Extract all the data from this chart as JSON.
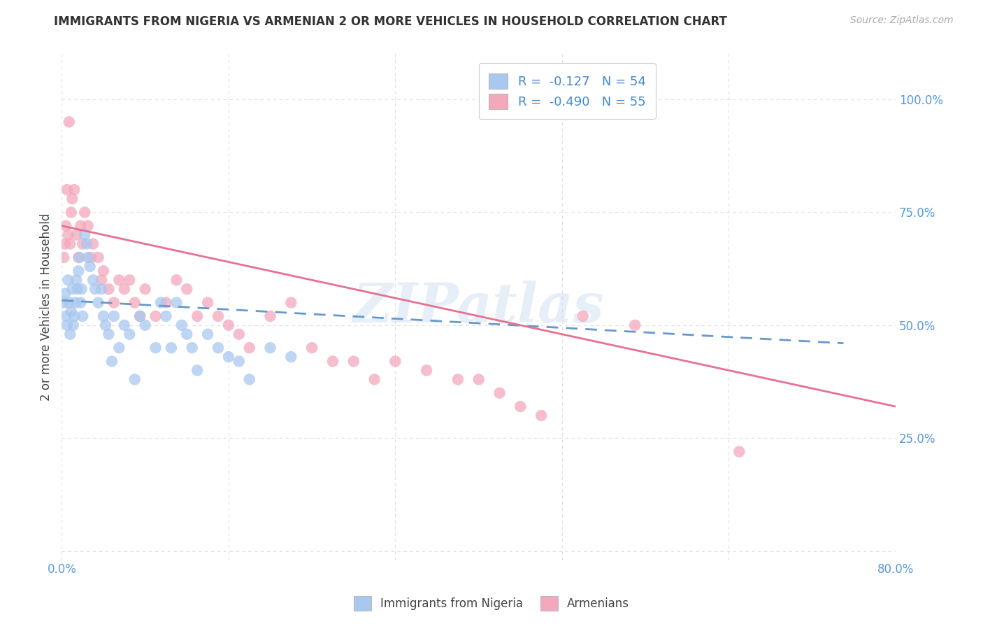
{
  "title": "IMMIGRANTS FROM NIGERIA VS ARMENIAN 2 OR MORE VEHICLES IN HOUSEHOLD CORRELATION CHART",
  "source": "Source: ZipAtlas.com",
  "ylabel": "2 or more Vehicles in Household",
  "xlim": [
    0.0,
    0.8
  ],
  "ylim": [
    -0.02,
    1.1
  ],
  "nigeria_color": "#a8c8f0",
  "armenian_color": "#f4a8bc",
  "nigeria_R": -0.127,
  "nigeria_N": 54,
  "armenian_R": -0.49,
  "armenian_N": 55,
  "nigeria_line_color": "#6699cc",
  "armenian_line_color": "#e87090",
  "nigeria_x": [
    0.002,
    0.003,
    0.004,
    0.005,
    0.006,
    0.007,
    0.008,
    0.009,
    0.01,
    0.011,
    0.012,
    0.013,
    0.014,
    0.015,
    0.016,
    0.017,
    0.018,
    0.019,
    0.02,
    0.022,
    0.024,
    0.025,
    0.027,
    0.03,
    0.032,
    0.035,
    0.038,
    0.04,
    0.042,
    0.045,
    0.048,
    0.05,
    0.055,
    0.06,
    0.065,
    0.07,
    0.075,
    0.08,
    0.09,
    0.095,
    0.1,
    0.105,
    0.11,
    0.115,
    0.12,
    0.125,
    0.13,
    0.14,
    0.15,
    0.16,
    0.17,
    0.18,
    0.2,
    0.22
  ],
  "nigeria_y": [
    0.55,
    0.57,
    0.52,
    0.5,
    0.6,
    0.55,
    0.48,
    0.53,
    0.58,
    0.5,
    0.52,
    0.55,
    0.6,
    0.58,
    0.62,
    0.65,
    0.55,
    0.58,
    0.52,
    0.7,
    0.68,
    0.65,
    0.63,
    0.6,
    0.58,
    0.55,
    0.58,
    0.52,
    0.5,
    0.48,
    0.42,
    0.52,
    0.45,
    0.5,
    0.48,
    0.38,
    0.52,
    0.5,
    0.45,
    0.55,
    0.52,
    0.45,
    0.55,
    0.5,
    0.48,
    0.45,
    0.4,
    0.48,
    0.45,
    0.43,
    0.42,
    0.38,
    0.45,
    0.43
  ],
  "armenian_x": [
    0.002,
    0.003,
    0.004,
    0.005,
    0.006,
    0.007,
    0.008,
    0.009,
    0.01,
    0.012,
    0.014,
    0.016,
    0.018,
    0.02,
    0.022,
    0.025,
    0.028,
    0.03,
    0.035,
    0.038,
    0.04,
    0.045,
    0.05,
    0.055,
    0.06,
    0.065,
    0.07,
    0.075,
    0.08,
    0.09,
    0.1,
    0.11,
    0.12,
    0.13,
    0.14,
    0.15,
    0.16,
    0.17,
    0.18,
    0.2,
    0.22,
    0.24,
    0.26,
    0.28,
    0.3,
    0.32,
    0.35,
    0.38,
    0.4,
    0.42,
    0.44,
    0.46,
    0.5,
    0.55,
    0.65
  ],
  "armenian_y": [
    0.65,
    0.68,
    0.72,
    0.8,
    0.7,
    0.95,
    0.68,
    0.75,
    0.78,
    0.8,
    0.7,
    0.65,
    0.72,
    0.68,
    0.75,
    0.72,
    0.65,
    0.68,
    0.65,
    0.6,
    0.62,
    0.58,
    0.55,
    0.6,
    0.58,
    0.6,
    0.55,
    0.52,
    0.58,
    0.52,
    0.55,
    0.6,
    0.58,
    0.52,
    0.55,
    0.52,
    0.5,
    0.48,
    0.45,
    0.52,
    0.55,
    0.45,
    0.42,
    0.42,
    0.38,
    0.42,
    0.4,
    0.38,
    0.38,
    0.35,
    0.32,
    0.3,
    0.52,
    0.5,
    0.22
  ],
  "nigeria_line_x": [
    0.0,
    0.75
  ],
  "nigeria_line_y": [
    0.555,
    0.46
  ],
  "armenian_line_x": [
    0.0,
    0.8
  ],
  "armenian_line_y": [
    0.72,
    0.32
  ],
  "watermark": "ZIPatlas",
  "grid_color": "#e0e0e0",
  "background_color": "#ffffff"
}
